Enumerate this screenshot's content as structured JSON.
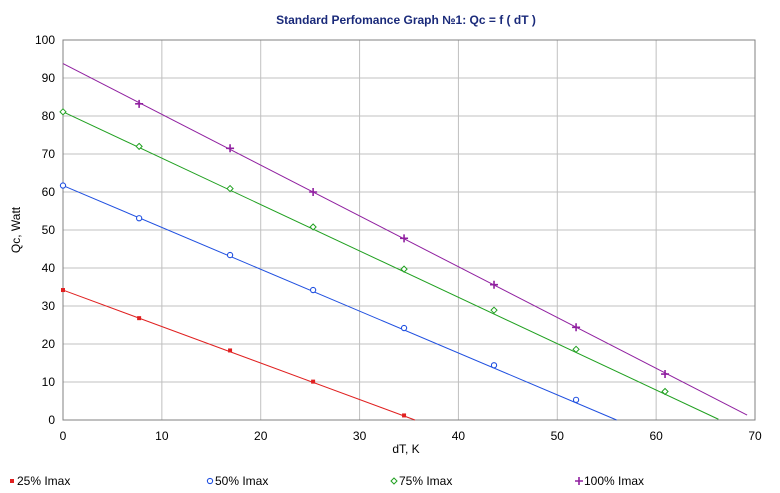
{
  "chart_data": {
    "type": "line",
    "title": "Standard Perfomance Graph №1: Qc = f ( dT )",
    "xlabel": "dT, K",
    "ylabel": "Qc, Watt",
    "xlim": [
      0,
      70
    ],
    "ylim": [
      0,
      100
    ],
    "xticks": [
      "0",
      "10",
      "20",
      "30",
      "40",
      "50",
      "60",
      "70"
    ],
    "yticks": [
      "0",
      "10",
      "20",
      "30",
      "40",
      "50",
      "60",
      "70",
      "80",
      "90",
      "100"
    ],
    "grid": true,
    "legend_position": "bottom",
    "series": [
      {
        "name": "25% Imax",
        "color": "#e02020",
        "marker": "square",
        "line": [
          [
            0,
            34.2
          ],
          [
            35.6,
            0
          ]
        ],
        "markers": [
          [
            0,
            34.2
          ],
          [
            7.7,
            26.8
          ],
          [
            16.9,
            18.3
          ],
          [
            25.3,
            10.1
          ],
          [
            34.5,
            1.2
          ]
        ]
      },
      {
        "name": "50% Imax",
        "color": "#2050e0",
        "marker": "circle",
        "line": [
          [
            0,
            61.7
          ],
          [
            56,
            0
          ]
        ],
        "markers": [
          [
            0,
            61.7
          ],
          [
            7.7,
            53.1
          ],
          [
            16.9,
            43.4
          ],
          [
            25.3,
            34.2
          ],
          [
            34.5,
            24.2
          ],
          [
            43.6,
            14.4
          ],
          [
            51.9,
            5.3
          ]
        ]
      },
      {
        "name": "75% Imax",
        "color": "#20a020",
        "marker": "diamond",
        "line": [
          [
            0,
            81.1
          ],
          [
            66.3,
            0.2
          ]
        ],
        "markers": [
          [
            0,
            81.1
          ],
          [
            7.7,
            72
          ],
          [
            16.9,
            60.9
          ],
          [
            25.3,
            50.8
          ],
          [
            34.5,
            39.7
          ],
          [
            43.6,
            28.9
          ],
          [
            51.9,
            18.6
          ],
          [
            60.9,
            7.5
          ]
        ]
      },
      {
        "name": "100% Imax",
        "color": "#9020a0",
        "marker": "plus",
        "line": [
          [
            0,
            93.8
          ],
          [
            69.2,
            1.3
          ]
        ],
        "markers": [
          [
            7.7,
            83.2
          ],
          [
            16.9,
            71.5
          ],
          [
            25.3,
            60
          ],
          [
            34.5,
            47.8
          ],
          [
            43.6,
            35.6
          ],
          [
            51.9,
            24.4
          ],
          [
            60.9,
            12.1
          ]
        ]
      }
    ]
  }
}
